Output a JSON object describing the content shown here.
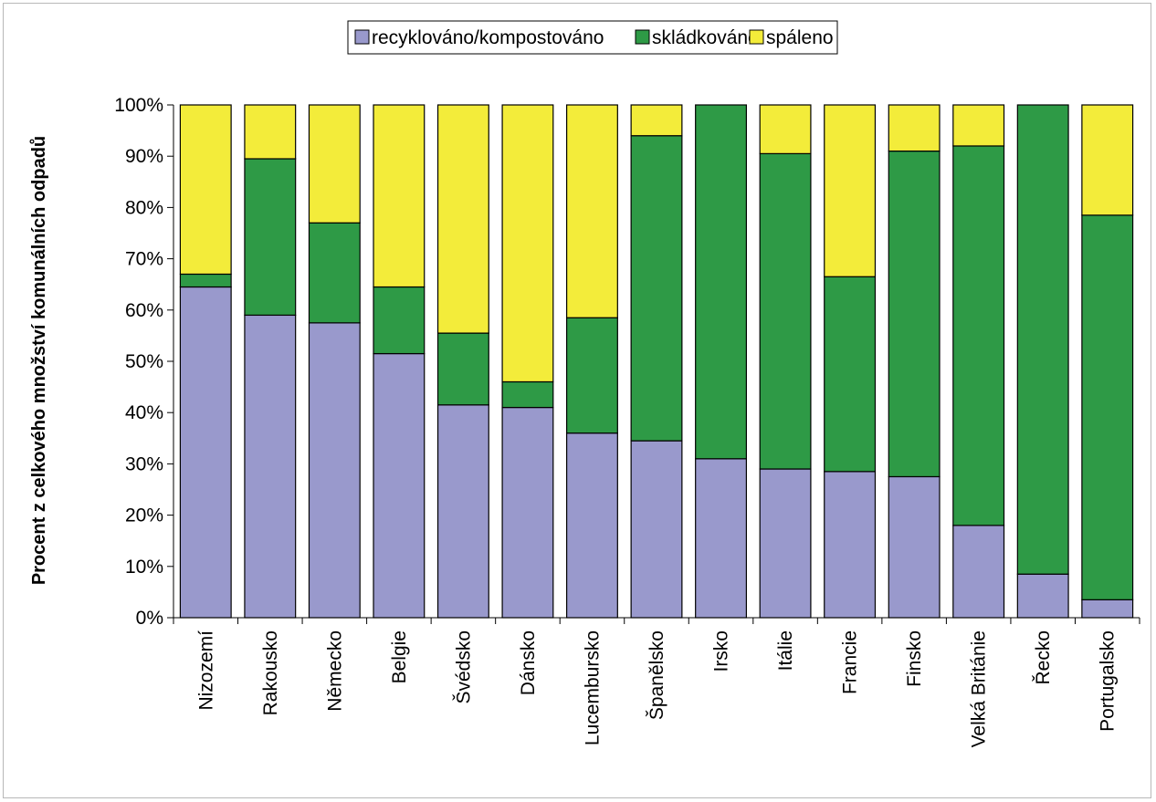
{
  "chart_data": {
    "type": "bar",
    "stacked": true,
    "categories": [
      "Nizozemí",
      "Rakousko",
      "Německo",
      "Belgie",
      "Švédsko",
      "Dánsko",
      "Lucembursko",
      "Španělsko",
      "Irsko",
      "Itálie",
      "Francie",
      "Finsko",
      "Velká Británie",
      "Řecko",
      "Portugalsko"
    ],
    "series": [
      {
        "name": "recyklováno/kompostováno",
        "color": "#9999cc",
        "values": [
          64.5,
          59,
          57.5,
          51.5,
          41.5,
          41,
          36,
          34.5,
          31,
          29,
          28.5,
          27.5,
          18,
          8.5,
          3.5
        ]
      },
      {
        "name": "skládkováno",
        "color": "#2e9a46",
        "values": [
          2.5,
          30.5,
          19.5,
          13,
          14,
          5,
          22.5,
          59.5,
          69,
          61.5,
          38,
          63.5,
          74,
          91.5,
          75
        ]
      },
      {
        "name": "spáleno",
        "color": "#f3ec3a",
        "values": [
          33,
          10.5,
          23,
          35.5,
          44.5,
          54,
          41.5,
          6,
          0,
          9.5,
          33.5,
          9,
          8,
          0,
          21.5
        ]
      }
    ],
    "ylabel": "Procent z celkového množství komunálních odpadů",
    "xlabel": "",
    "ylim": [
      0,
      100
    ],
    "yticks": [
      "0%",
      "10%",
      "20%",
      "30%",
      "40%",
      "50%",
      "60%",
      "70%",
      "80%",
      "90%",
      "100%"
    ],
    "grid": false,
    "legend": "top"
  }
}
